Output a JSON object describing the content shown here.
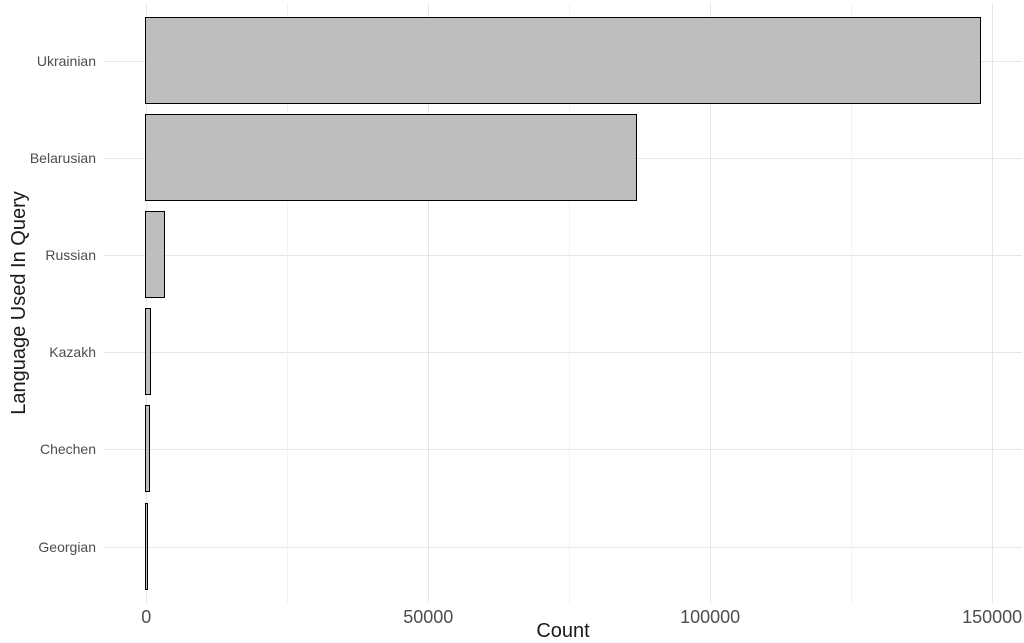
{
  "chart_data": {
    "type": "bar",
    "orientation": "horizontal",
    "title": "",
    "xlabel": "Count",
    "ylabel": "Language Used In Query",
    "categories": [
      "Ukrainian",
      "Belarusian",
      "Russian",
      "Kazakh",
      "Chechen",
      "Georgian"
    ],
    "values": [
      148000,
      87000,
      3200,
      800,
      650,
      150
    ],
    "x_ticks": [
      0,
      50000,
      100000,
      150000
    ],
    "x_tick_labels": [
      "0",
      "50000",
      "100000",
      "150000"
    ],
    "x_minor_ticks": [
      25000,
      75000,
      125000
    ],
    "xlim": [
      -7500,
      155300
    ],
    "bar_width_fraction": 0.9,
    "grid": true,
    "legend": false,
    "colors": {
      "background": "#ffffff",
      "bar_fill": "#bebebe",
      "bar_stroke": "#000000",
      "grid_major": "#e6e6e6",
      "grid_minor": "#f2f2f2",
      "tick_text": "#4d4d4d",
      "title_text": "#1a1a1a"
    }
  }
}
